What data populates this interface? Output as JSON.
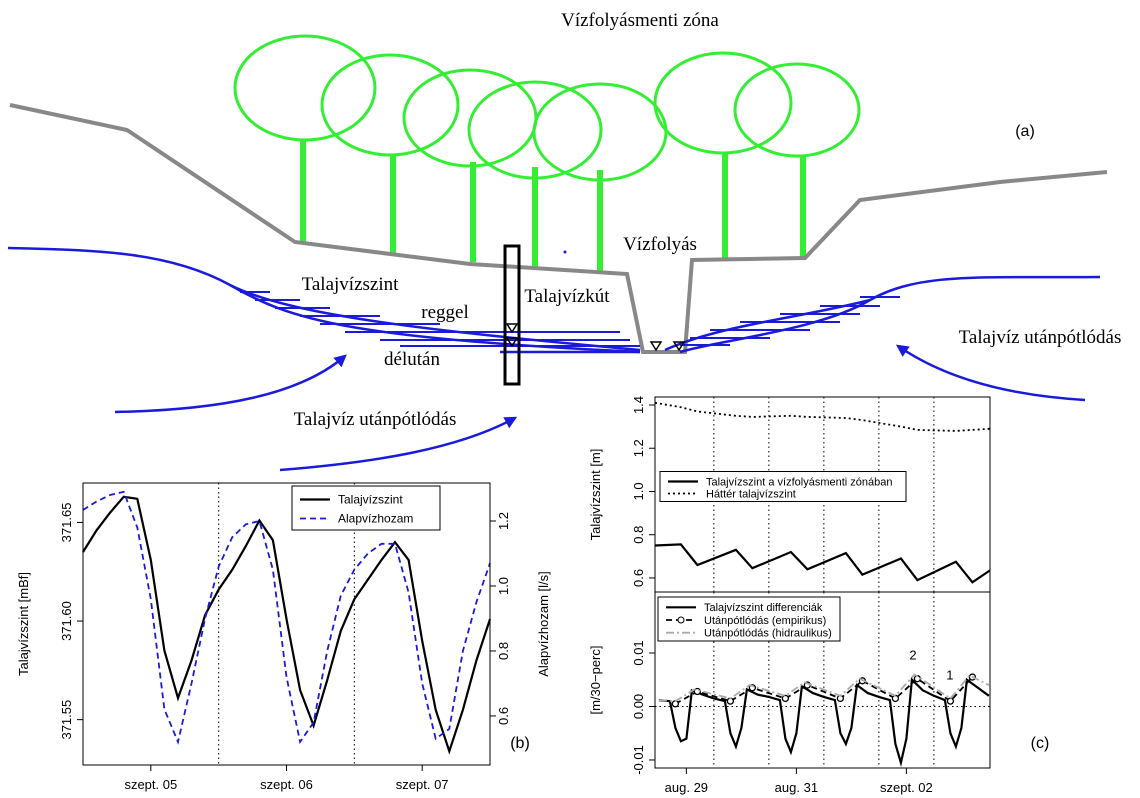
{
  "diagram": {
    "title": "Vízfolyásmenti zóna",
    "panel_label": "(a)",
    "labels": [
      "Vízfolyás",
      "Talajvízszint",
      "reggel",
      "Talajvízkút",
      "délután",
      "Talajvíz utánpótlódás",
      "Talajvíz utánpótlódás"
    ]
  },
  "chart_data": [
    {
      "type": "line",
      "panel_label": "(b)",
      "y_label": "Talajvízszint [mBf]",
      "y2_label": "Alapvízhozam [l/s]",
      "xlim": [
        0,
        3
      ],
      "xticks": [
        {
          "value": 0.5,
          "label": "szept. 05"
        },
        {
          "value": 1.5,
          "label": "szept. 06"
        },
        {
          "value": 2.5,
          "label": "szept. 07"
        }
      ],
      "vlines": [
        1,
        2
      ],
      "ylim": [
        371.527,
        371.67
      ],
      "yticks": [
        371.55,
        {
          "value": 371.6,
          "label": "371.60"
        },
        371.65
      ],
      "y2lim": [
        0.449,
        1.317
      ],
      "y2ticks": [
        0.6,
        0.8,
        {
          "value": 1.0,
          "label": "1.0"
        },
        1.2
      ],
      "legend": "top-right",
      "x": [
        0,
        0.1,
        0.2,
        0.3,
        0.4,
        0.5,
        0.6,
        0.7,
        0.8,
        0.9,
        1.0,
        1.1,
        1.2,
        1.3,
        1.4,
        1.5,
        1.6,
        1.7,
        1.8,
        1.9,
        2.0,
        2.1,
        2.2,
        2.3,
        2.4,
        2.5,
        2.6,
        2.7,
        2.8,
        2.9,
        3.0
      ],
      "series": [
        {
          "name": "Talajvízszint",
          "color": "#000000",
          "style": "solid",
          "values": [
            371.635,
            371.646,
            371.655,
            371.663,
            371.662,
            371.631,
            371.585,
            371.561,
            371.58,
            371.603,
            371.616,
            371.626,
            371.638,
            371.651,
            371.641,
            371.601,
            371.565,
            371.547,
            371.57,
            371.595,
            371.611,
            371.621,
            371.631,
            371.64,
            371.631,
            371.59,
            371.555,
            371.534,
            371.555,
            371.58,
            371.601
          ]
        },
        {
          "name": "Alapvízhozam",
          "color": "#1a1adb",
          "style": "dashed",
          "axis": "y2",
          "values": [
            1.234,
            1.26,
            1.28,
            1.29,
            1.18,
            0.96,
            0.62,
            0.52,
            0.7,
            0.9,
            1.06,
            1.15,
            1.19,
            1.2,
            1.05,
            0.72,
            0.52,
            0.58,
            0.8,
            0.97,
            1.05,
            1.1,
            1.13,
            1.13,
            0.98,
            0.7,
            0.53,
            0.56,
            0.8,
            0.95,
            1.07
          ]
        }
      ]
    },
    {
      "type": "line",
      "y_label": "Talajvízszint [m]",
      "xlim": [
        -0.07,
        6.02
      ],
      "vlines": [
        1,
        2,
        3,
        4,
        5
      ],
      "ylim": [
        0.535,
        1.437
      ],
      "yticks": [
        0.6,
        {
          "value": 0.8,
          "label": "0.8"
        },
        {
          "value": 1.0,
          "label": "1.0"
        },
        1.2,
        1.4
      ],
      "legend": "left",
      "x": [
        -0.07,
        0.4,
        0.7,
        1.4,
        1.7,
        2.4,
        2.7,
        3.4,
        3.7,
        4.4,
        4.7,
        5.4,
        5.7,
        6.02
      ],
      "series": [
        {
          "name": "Talajvízszint a vízfolyásmenti zónában",
          "color": "#000000",
          "style": "solid",
          "values": [
            0.75,
            0.755,
            0.66,
            0.73,
            0.645,
            0.72,
            0.64,
            0.715,
            0.615,
            0.69,
            0.59,
            0.675,
            0.58,
            0.635
          ]
        },
        {
          "name": "Háttér talajvízszint",
          "color": "#000000",
          "style": "dotted",
          "values": [
            1.41,
            1.39,
            1.37,
            1.35,
            1.345,
            1.35,
            1.345,
            1.34,
            1.33,
            1.3,
            1.285,
            1.28,
            1.285,
            1.29
          ]
        }
      ]
    },
    {
      "type": "line",
      "panel_label": "(c)",
      "y_label": "[m/30−perc]",
      "xlim": [
        -0.07,
        6.02
      ],
      "xticks": [
        {
          "value": 0.5,
          "label": "aug. 29"
        },
        {
          "value": 2.5,
          "label": "aug. 31"
        },
        {
          "value": 4.5,
          "label": "szept. 02"
        }
      ],
      "vlines": [
        1,
        2,
        3,
        4,
        5
      ],
      "hlines": [
        0
      ],
      "ylim": [
        -0.0115,
        0.0214
      ],
      "yticks": [
        -0.01,
        {
          "value": 0,
          "label": "0.00"
        },
        0.01
      ],
      "legend": "top-left",
      "annotations": [
        {
          "text": "2",
          "x": 4.62,
          "y": 0.0088
        },
        {
          "text": "1",
          "x": 5.29,
          "y": 0.005
        }
      ],
      "x": [
        0,
        0.2,
        0.3,
        0.4,
        0.5,
        0.6,
        0.8,
        1,
        1.2,
        1.3,
        1.4,
        1.5,
        1.6,
        1.8,
        2,
        2.2,
        2.3,
        2.4,
        2.5,
        2.6,
        2.8,
        3,
        3.2,
        3.3,
        3.4,
        3.5,
        3.6,
        3.8,
        4,
        4.2,
        4.3,
        4.4,
        4.5,
        4.6,
        4.8,
        5,
        5.2,
        5.3,
        5.4,
        5.5,
        5.6,
        5.8,
        6.0
      ],
      "series": [
        {
          "name": "Talajvízszint differenciák",
          "color": "#000000",
          "style": "solid",
          "values": [
            0.0012,
            0.001,
            -0.004,
            -0.0065,
            -0.006,
            0.003,
            0.0022,
            0.0015,
            0.001,
            -0.005,
            -0.0075,
            -0.004,
            0.0032,
            0.0022,
            0.0018,
            0.0012,
            -0.006,
            -0.0085,
            -0.005,
            0.0038,
            0.0025,
            0.0018,
            0.0012,
            -0.005,
            -0.007,
            -0.004,
            0.004,
            0.0025,
            0.0018,
            0.0012,
            -0.007,
            -0.0105,
            -0.006,
            0.005,
            0.003,
            0.002,
            0.0012,
            -0.005,
            -0.0075,
            -0.004,
            0.005,
            0.0035,
            0.002
          ]
        },
        {
          "name": "Utánpótlódás (empirikus)",
          "color": "#000000",
          "style": "dashed",
          "markers": "circle",
          "x": [
            0.3,
            0.7,
            1.3,
            1.7,
            2.3,
            2.7,
            3.3,
            3.7,
            4.3,
            4.7,
            5.3,
            5.7
          ],
          "values": [
            0.0005,
            0.0028,
            0.001,
            0.0035,
            0.0015,
            0.004,
            0.0015,
            0.0048,
            0.0015,
            0.0052,
            0.001,
            0.0055
          ]
        },
        {
          "name": "Utánpótlódás (hidraulikus)",
          "color": "#aaaaaa",
          "style": "dashdot",
          "x": [
            0,
            0.3,
            0.65,
            1.3,
            1.65,
            2.3,
            2.65,
            3.3,
            3.65,
            4.3,
            4.65,
            5.3,
            5.65,
            6.0
          ],
          "values": [
            0.0012,
            0.001,
            0.0032,
            0.0015,
            0.004,
            0.002,
            0.0045,
            0.002,
            0.0052,
            0.002,
            0.006,
            0.0015,
            0.0058,
            0.004
          ]
        }
      ]
    }
  ]
}
